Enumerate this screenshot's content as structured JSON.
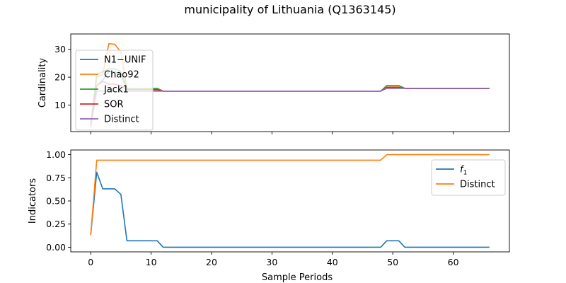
{
  "title": "municipality of Lithuania (Q1363145)",
  "colors": {
    "blue": "#1f77b4",
    "orange": "#ff7f0e",
    "green": "#2ca02c",
    "red": "#d62728",
    "purple": "#9467bd"
  },
  "chart_data": [
    {
      "type": "line",
      "xlabel": "",
      "ylabel": "Cardinality",
      "xlim": [
        -3.3,
        69.3
      ],
      "ylim": [
        0.5,
        35.5
      ],
      "xticks": [],
      "yticks": [
        10,
        20,
        30
      ],
      "ytick_labels": [
        "10",
        "20",
        "30"
      ],
      "legend_position": "upper-left",
      "series": [
        {
          "name": "N1−UNIF",
          "color": "#1f77b4",
          "x": [
            0,
            1,
            2,
            3,
            4,
            5,
            6,
            11,
            12,
            48,
            49,
            51,
            52,
            66
          ],
          "y": [
            3,
            17,
            19,
            22,
            22,
            21,
            15.5,
            15.5,
            15,
            15,
            16.3,
            16.3,
            16,
            16
          ]
        },
        {
          "name": "Chao92",
          "color": "#ff7f0e",
          "x": [
            0,
            1,
            2,
            3,
            4,
            5,
            6,
            11,
            12,
            48,
            49,
            51,
            52,
            66
          ],
          "y": [
            3,
            20,
            21,
            32,
            31.8,
            29,
            16,
            16,
            15,
            15,
            16.5,
            16.5,
            16,
            16
          ]
        },
        {
          "name": "Jack1",
          "color": "#2ca02c",
          "x": [
            0,
            1,
            2,
            3,
            4,
            5,
            6,
            11,
            12,
            48,
            49,
            51,
            52,
            66
          ],
          "y": [
            3,
            21,
            22,
            23,
            23,
            22,
            16,
            16,
            15,
            15,
            17,
            17,
            16,
            16
          ]
        },
        {
          "name": "SOR",
          "color": "#d62728",
          "x": [
            0,
            1,
            2,
            3,
            4,
            5,
            6,
            11,
            12,
            48,
            49,
            51,
            52,
            66
          ],
          "y": [
            3,
            17,
            18.5,
            17.5,
            17.5,
            17,
            15.5,
            15.5,
            15,
            15,
            16.3,
            16.3,
            16,
            16
          ]
        },
        {
          "name": "Distinct",
          "color": "#9467bd",
          "x": [
            0,
            1,
            2,
            3,
            4,
            5,
            6,
            11,
            12,
            48,
            49,
            51,
            52,
            66
          ],
          "y": [
            2,
            15,
            15,
            15,
            15,
            15,
            15,
            15,
            15,
            15,
            16,
            16,
            16,
            16
          ]
        }
      ]
    },
    {
      "type": "line",
      "xlabel": "Sample Periods",
      "ylabel": "Indicators",
      "xlim": [
        -3.3,
        69.3
      ],
      "ylim": [
        -0.05,
        1.05
      ],
      "xticks": [
        0,
        10,
        20,
        30,
        40,
        50,
        60
      ],
      "xtick_labels": [
        "0",
        "10",
        "20",
        "30",
        "40",
        "50",
        "60"
      ],
      "yticks": [
        0.0,
        0.25,
        0.5,
        0.75,
        1.0
      ],
      "ytick_labels": [
        "0.00",
        "0.25",
        "0.50",
        "0.75",
        "1.00"
      ],
      "legend_position": "upper-right",
      "series": [
        {
          "name": "f1",
          "name_base": "f",
          "name_sub": "1",
          "color": "#1f77b4",
          "x": [
            0,
            1,
            2,
            3,
            4,
            5,
            6,
            11,
            12,
            48,
            49,
            51,
            52,
            66
          ],
          "y": [
            0.13,
            0.81,
            0.63,
            0.63,
            0.63,
            0.57,
            0.07,
            0.07,
            0.0,
            0.0,
            0.07,
            0.07,
            0.0,
            0.0
          ]
        },
        {
          "name": "Distinct",
          "color": "#ff7f0e",
          "x": [
            0,
            1,
            2,
            48,
            49,
            66
          ],
          "y": [
            0.13,
            0.94,
            0.94,
            0.94,
            1.0,
            1.0
          ]
        }
      ]
    }
  ]
}
